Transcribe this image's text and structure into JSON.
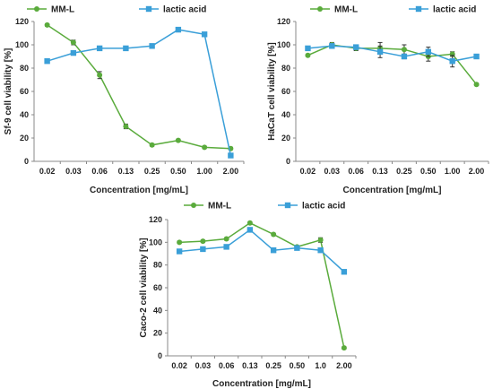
{
  "colors": {
    "mm_l": "#5aab3c",
    "lactic_acid": "#3a9fd8"
  },
  "chart_data": [
    {
      "type": "line",
      "categories": [
        "0.02",
        "0.03",
        "0.06",
        "0.13",
        "0.25",
        "0.50",
        "1.00",
        "2.00"
      ],
      "xlabel": "Concentration [mg/mL]",
      "ylabel": "Sf-9 cell viability [%]",
      "ylim": [
        0,
        120
      ],
      "yticks": [
        0,
        20,
        40,
        60,
        80,
        100,
        120
      ],
      "grid": false,
      "legend": "top",
      "series": [
        {
          "name": "MM-L",
          "values": [
            117,
            102,
            74,
            30,
            14,
            18,
            12,
            11
          ],
          "errors": [
            1,
            2,
            3,
            2,
            1,
            1,
            1,
            1
          ]
        },
        {
          "name": "lactic acid",
          "values": [
            86,
            93,
            97,
            97,
            99,
            113,
            109,
            5
          ],
          "errors": [
            1,
            1,
            1,
            1,
            1,
            1,
            1,
            1
          ]
        }
      ]
    },
    {
      "type": "line",
      "categories": [
        "0.02",
        "0.03",
        "0.06",
        "0.13",
        "0.25",
        "0.50",
        "1.00",
        "2.00"
      ],
      "xlabel": "Concentration [mg/mL]",
      "ylabel": "HaCaT cell viability [%]",
      "ylim": [
        0,
        120
      ],
      "yticks": [
        0,
        20,
        40,
        60,
        80,
        100,
        120
      ],
      "grid": false,
      "legend": "top",
      "series": [
        {
          "name": "MM-L",
          "values": [
            91,
            100,
            97,
            97,
            96,
            90,
            92,
            66
          ],
          "errors": [
            1,
            2,
            2,
            5,
            4,
            4,
            2,
            1
          ]
        },
        {
          "name": "lactic acid",
          "values": [
            97,
            99,
            98,
            94,
            90,
            94,
            86,
            90
          ],
          "errors": [
            1,
            1,
            1,
            5,
            2,
            4,
            5,
            1
          ]
        }
      ]
    },
    {
      "type": "line",
      "categories": [
        "0.02",
        "0.03",
        "0.06",
        "0.13",
        "0.25",
        "0.50",
        "1.0",
        "2.00"
      ],
      "xlabel": "Concentration [mg/mL]",
      "ylabel": "Caco-2 cell viability [%]",
      "ylim": [
        0,
        120
      ],
      "yticks": [
        0,
        20,
        40,
        60,
        80,
        100,
        120
      ],
      "grid": false,
      "legend": "top",
      "series": [
        {
          "name": "MM-L",
          "values": [
            100,
            101,
            103,
            117,
            107,
            96,
            102,
            7
          ],
          "errors": [
            1,
            1,
            1,
            1,
            1,
            1,
            2,
            1
          ]
        },
        {
          "name": "lactic acid",
          "values": [
            92,
            94,
            96,
            111,
            93,
            95,
            93,
            74
          ],
          "errors": [
            1,
            1,
            1,
            1,
            1,
            1,
            1,
            1
          ]
        }
      ]
    }
  ]
}
